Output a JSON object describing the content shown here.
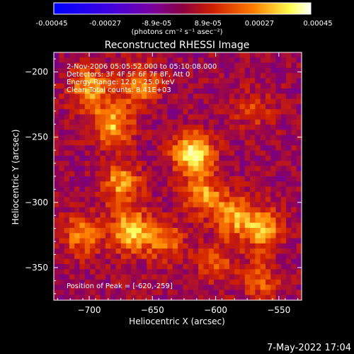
{
  "colorbar": {
    "ticks": [
      "-0.00045",
      "-0.00027",
      "-8.9e-05",
      "8.9e-05",
      "0.00027",
      "0.00045"
    ],
    "units_label": "(photons cm⁻² s⁻¹ asec⁻²)"
  },
  "chart_data": {
    "type": "heatmap",
    "title": "Reconstructed RHESSI Image",
    "xlabel": "Heliocentric X (arcsec)",
    "ylabel": "Heliocentric Y (arcsec)",
    "xlim": [
      -728,
      -532
    ],
    "ylim": [
      -375,
      -185
    ],
    "x_ticks": [
      -700,
      -650,
      -600,
      -550
    ],
    "y_ticks": [
      -200,
      -250,
      -300,
      -350
    ],
    "value_range": [
      -0.00045,
      0.00045
    ],
    "colormap": [
      "#0000ff",
      "#5a00c8",
      "#8a0060",
      "#d02000",
      "#ff8000",
      "#ffff60",
      "#ffffff"
    ],
    "annotations": [
      "2-Nov-2006 05:05:52.000 to 05:10:08.000",
      "Detectors: 3F 4F 5F 6F 7F 8F, Att 0",
      "Energy Range: 12.0 - 25.0 keV",
      "Clean     Total counts: 8.41E+03"
    ],
    "peak_label": "Position of Peak = [-620,-259]",
    "peak": [
      -620,
      -259
    ],
    "sources": [
      {
        "x": -618,
        "y": -262,
        "amp": 0.00045
      },
      {
        "x": -667,
        "y": -322,
        "amp": 0.0004
      },
      {
        "x": -675,
        "y": -285,
        "amp": 0.0003
      },
      {
        "x": -682,
        "y": -240,
        "amp": 0.00034
      },
      {
        "x": -700,
        "y": -212,
        "amp": 0.00032
      },
      {
        "x": -660,
        "y": -210,
        "amp": 0.00026
      },
      {
        "x": -610,
        "y": -293,
        "amp": 0.00028
      },
      {
        "x": -586,
        "y": -310,
        "amp": 0.0003
      },
      {
        "x": -563,
        "y": -320,
        "amp": 0.00032
      },
      {
        "x": -706,
        "y": -325,
        "amp": 0.00026
      },
      {
        "x": -565,
        "y": -360,
        "amp": 0.0002
      },
      {
        "x": -600,
        "y": -345,
        "amp": 0.00018
      },
      {
        "x": -640,
        "y": -330,
        "amp": 0.00022
      },
      {
        "x": -570,
        "y": -230,
        "amp": 0.00014
      }
    ]
  },
  "footer": {
    "timestamp": "7-May-2022 17:04"
  }
}
